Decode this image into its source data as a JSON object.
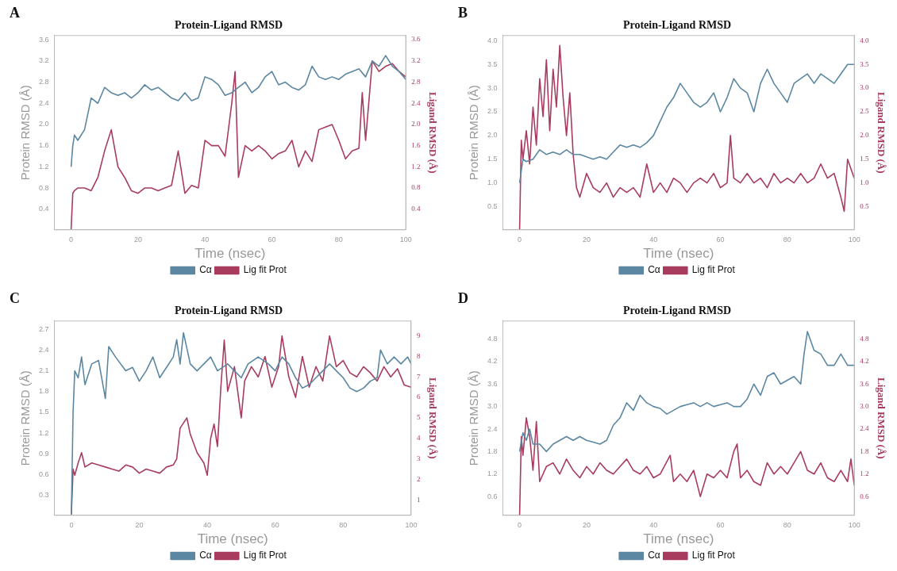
{
  "chart_data": [
    {
      "type": "line",
      "title": "Protein-Ligand RMSD",
      "annotations": [
        "A"
      ],
      "xlabel": "Time (nsec)",
      "ylabel": "Protein RMSD (Å)",
      "y2label": "Ligand RMSD (Å)",
      "xlim": [
        -5,
        100
      ],
      "xticks": [
        0,
        20,
        40,
        60,
        80,
        100
      ],
      "ylim": [
        0.01,
        3.68
      ],
      "yticks": [
        0.4,
        0.8,
        1.2,
        1.6,
        {
          "value": 2,
          "label": "2.0"
        },
        2.4,
        2.8,
        3.2,
        3.6
      ],
      "y2lim": [
        0.01,
        3.68
      ],
      "y2ticks": [
        0.4,
        0.8,
        1.2,
        1.6,
        {
          "value": 2,
          "label": "2.0"
        },
        2.4,
        2.8,
        3.2,
        3.6
      ],
      "grid": false,
      "legend": "bottom",
      "marker": "none",
      "line_style": "solid",
      "series": [
        {
          "name": "Cα",
          "color": "#5b87a2",
          "x": [
            0,
            0.5,
            1,
            2,
            4,
            6,
            8,
            10,
            12,
            14,
            16,
            18,
            20,
            22,
            24,
            26,
            28,
            30,
            32,
            34,
            36,
            38,
            40,
            42,
            44,
            46,
            48,
            50,
            52,
            54,
            56,
            58,
            60,
            62,
            64,
            66,
            68,
            70,
            72,
            74,
            76,
            78,
            80,
            82,
            84,
            86,
            88,
            90,
            92,
            94,
            96,
            98,
            100
          ],
          "values": [
            1.2,
            1.6,
            1.8,
            1.7,
            1.9,
            2.5,
            2.4,
            2.7,
            2.6,
            2.55,
            2.6,
            2.5,
            2.6,
            2.75,
            2.65,
            2.7,
            2.6,
            2.5,
            2.45,
            2.6,
            2.45,
            2.5,
            2.9,
            2.85,
            2.75,
            2.55,
            2.6,
            2.7,
            2.8,
            2.6,
            2.7,
            2.9,
            3.0,
            2.75,
            2.8,
            2.7,
            2.65,
            2.75,
            3.1,
            2.9,
            2.85,
            2.9,
            2.85,
            2.95,
            3.0,
            3.05,
            2.9,
            3.2,
            3.1,
            3.3,
            3.1,
            3.0,
            2.85
          ]
        },
        {
          "name": "Lig fit Prot",
          "color": "#a83c5e",
          "axis": "y2",
          "x": [
            0,
            0.5,
            1,
            2,
            4,
            6,
            8,
            10,
            12,
            14,
            16,
            18,
            20,
            22,
            24,
            26,
            28,
            30,
            32,
            34,
            36,
            38,
            40,
            42,
            44,
            46,
            48,
            49,
            50,
            52,
            54,
            56,
            58,
            60,
            62,
            64,
            66,
            68,
            70,
            72,
            74,
            76,
            78,
            80,
            82,
            84,
            86,
            87,
            88,
            90,
            92,
            94,
            96,
            98,
            100
          ],
          "values": [
            0.02,
            0.7,
            0.75,
            0.8,
            0.8,
            0.75,
            1.0,
            1.5,
            1.9,
            1.2,
            1.0,
            0.75,
            0.7,
            0.8,
            0.8,
            0.75,
            0.8,
            0.85,
            1.5,
            0.7,
            0.85,
            0.8,
            1.7,
            1.6,
            1.6,
            1.4,
            2.4,
            3.0,
            1.0,
            1.6,
            1.5,
            1.6,
            1.5,
            1.35,
            1.45,
            1.5,
            1.7,
            1.2,
            1.5,
            1.3,
            1.9,
            1.95,
            2.0,
            1.7,
            1.35,
            1.5,
            1.55,
            2.6,
            1.7,
            3.2,
            3.0,
            3.1,
            3.15,
            3.0,
            2.9
          ]
        }
      ]
    },
    {
      "type": "line",
      "title": "Protein-Ligand RMSD",
      "annotations": [
        "B"
      ],
      "xlabel": "Time (nsec)",
      "ylabel": "Protein RMSD (Å)",
      "y2label": "Ligand RMSD (Å)",
      "xlim": [
        -5,
        100
      ],
      "xticks": [
        0,
        20,
        40,
        60,
        80,
        100
      ],
      "ylim": [
        0.01,
        4.11
      ],
      "yticks": [
        0.5,
        {
          "value": 1,
          "label": "1.0"
        },
        1.5,
        {
          "value": 2,
          "label": "2.0"
        },
        2.5,
        {
          "value": 3,
          "label": "3.0"
        },
        3.5,
        {
          "value": 4,
          "label": "4.0"
        }
      ],
      "y2lim": [
        0.01,
        4.11
      ],
      "y2ticks": [
        0.5,
        {
          "value": 1,
          "label": "1.0"
        },
        1.5,
        {
          "value": 2,
          "label": "2.0"
        },
        2.5,
        {
          "value": 3,
          "label": "3.0"
        },
        3.5,
        {
          "value": 4,
          "label": "4.0"
        }
      ],
      "grid": false,
      "legend": "bottom",
      "marker": "none",
      "line_style": "solid",
      "series": [
        {
          "name": "Cα",
          "color": "#5b87a2",
          "x": [
            0,
            1,
            2,
            4,
            6,
            8,
            10,
            12,
            14,
            16,
            18,
            20,
            22,
            24,
            26,
            28,
            30,
            32,
            34,
            36,
            38,
            40,
            42,
            44,
            46,
            48,
            50,
            52,
            54,
            56,
            58,
            60,
            62,
            64,
            66,
            68,
            70,
            72,
            74,
            76,
            78,
            80,
            82,
            84,
            86,
            88,
            90,
            92,
            94,
            96,
            98,
            100
          ],
          "values": [
            1.0,
            1.5,
            1.45,
            1.5,
            1.7,
            1.6,
            1.65,
            1.6,
            1.7,
            1.6,
            1.6,
            1.55,
            1.5,
            1.55,
            1.5,
            1.65,
            1.8,
            1.75,
            1.8,
            1.75,
            1.85,
            2.0,
            2.3,
            2.6,
            2.8,
            3.1,
            2.9,
            2.7,
            2.6,
            2.7,
            2.9,
            2.5,
            2.8,
            3.2,
            3.0,
            2.9,
            2.5,
            3.1,
            3.4,
            3.1,
            2.9,
            2.7,
            3.1,
            3.2,
            3.3,
            3.1,
            3.3,
            3.2,
            3.1,
            3.3,
            3.5,
            3.5
          ]
        },
        {
          "name": "Lig fit Prot",
          "color": "#a83c5e",
          "axis": "y2",
          "x": [
            0,
            0.5,
            1,
            2,
            3,
            4,
            5,
            6,
            7,
            8,
            9,
            10,
            11,
            12,
            13,
            14,
            15,
            16,
            17,
            18,
            20,
            22,
            24,
            26,
            28,
            30,
            32,
            34,
            36,
            38,
            40,
            42,
            44,
            46,
            48,
            50,
            52,
            54,
            56,
            58,
            60,
            62,
            63,
            64,
            66,
            68,
            70,
            72,
            74,
            76,
            78,
            80,
            82,
            84,
            86,
            88,
            90,
            92,
            94,
            96,
            97,
            98,
            100
          ],
          "values": [
            0.02,
            1.9,
            1.5,
            2.1,
            1.4,
            2.6,
            1.8,
            3.2,
            2.4,
            3.6,
            2.1,
            3.4,
            2.6,
            3.9,
            2.8,
            2.0,
            2.9,
            1.6,
            0.9,
            0.7,
            1.2,
            0.9,
            0.8,
            1.0,
            0.7,
            0.9,
            0.8,
            0.9,
            0.7,
            1.4,
            0.8,
            1.0,
            0.8,
            1.1,
            1.0,
            0.8,
            1.0,
            1.1,
            1.0,
            1.2,
            0.9,
            1.0,
            2.0,
            1.1,
            1.0,
            1.2,
            1.0,
            1.1,
            0.9,
            1.2,
            1.0,
            1.1,
            1.0,
            1.2,
            1.0,
            1.1,
            1.4,
            1.1,
            1.2,
            0.7,
            0.4,
            1.5,
            1.1
          ]
        }
      ]
    },
    {
      "type": "line",
      "title": "Protein-Ligand RMSD",
      "annotations": [
        "C"
      ],
      "xlabel": "Time (nsec)",
      "ylabel": "Protein RMSD (Å)",
      "y2label": "Ligand RMSD (Å)",
      "xlim": [
        -5,
        100
      ],
      "xticks": [
        0,
        20,
        40,
        60,
        80,
        100
      ],
      "ylim": [
        0.01,
        2.82
      ],
      "yticks": [
        0.3,
        0.6,
        0.9,
        1.2,
        1.5,
        1.8,
        2.1,
        2.4,
        2.7
      ],
      "y2lim": [
        0.24,
        9.73
      ],
      "y2ticks": [
        1,
        2,
        3,
        4,
        5,
        6,
        7,
        8,
        9
      ],
      "grid": false,
      "legend": "bottom",
      "marker": "none",
      "line_style": "solid",
      "series": [
        {
          "name": "Cα",
          "color": "#5b87a2",
          "x": [
            0,
            0.5,
            1,
            2,
            3,
            4,
            6,
            8,
            10,
            11,
            13,
            16,
            18,
            20,
            22,
            24,
            26,
            28,
            30,
            31,
            32,
            33,
            35,
            37,
            39,
            41,
            43,
            46,
            48,
            50,
            52,
            55,
            58,
            60,
            62,
            64,
            66,
            68,
            70,
            72,
            74,
            76,
            78,
            80,
            82,
            84,
            86,
            88,
            90,
            91,
            93,
            95,
            97,
            99,
            100
          ],
          "values": [
            0.02,
            1.5,
            2.1,
            2.0,
            2.3,
            1.9,
            2.2,
            2.25,
            1.7,
            2.45,
            2.3,
            2.1,
            2.15,
            1.95,
            2.1,
            2.3,
            2.0,
            2.15,
            2.3,
            2.55,
            2.2,
            2.65,
            2.2,
            2.1,
            2.2,
            2.3,
            2.1,
            2.2,
            2.1,
            2.0,
            2.2,
            2.3,
            2.2,
            2.1,
            2.3,
            2.2,
            2.0,
            1.85,
            1.9,
            2.0,
            2.1,
            2.2,
            2.1,
            2.0,
            1.85,
            1.8,
            1.85,
            1.95,
            2.0,
            2.4,
            2.2,
            2.3,
            2.2,
            2.3,
            2.2
          ]
        },
        {
          "name": "Lig fit Prot",
          "color": "#a83c5e",
          "axis": "y2",
          "x": [
            0,
            0.5,
            1,
            2,
            3,
            4,
            6,
            8,
            10,
            12,
            14,
            16,
            18,
            20,
            22,
            24,
            26,
            28,
            30,
            31,
            32,
            34,
            35,
            37,
            39,
            40,
            41,
            42,
            43,
            44,
            45,
            46,
            48,
            50,
            51,
            53,
            55,
            57,
            59,
            61,
            62,
            64,
            66,
            68,
            70,
            72,
            74,
            76,
            78,
            80,
            82,
            84,
            86,
            88,
            90,
            92,
            94,
            96,
            98,
            100
          ],
          "values": [
            0.3,
            2.5,
            2.2,
            2.8,
            3.3,
            2.6,
            2.8,
            2.7,
            2.6,
            2.5,
            2.4,
            2.7,
            2.6,
            2.3,
            2.5,
            2.4,
            2.3,
            2.6,
            2.7,
            3.0,
            4.5,
            5.0,
            4.2,
            3.3,
            2.8,
            2.2,
            4.0,
            4.7,
            3.6,
            6.5,
            8.8,
            6.3,
            7.5,
            5.0,
            6.8,
            7.5,
            7.0,
            8.0,
            6.5,
            7.5,
            9.0,
            7.0,
            6.0,
            8.0,
            6.5,
            7.5,
            6.8,
            9.0,
            7.5,
            7.8,
            7.2,
            7.0,
            7.5,
            7.2,
            6.8,
            7.5,
            7.0,
            7.4,
            6.6,
            6.5
          ]
        }
      ]
    },
    {
      "type": "line",
      "title": "Protein-Ligand RMSD",
      "annotations": [
        "D"
      ],
      "xlabel": "Time (nsec)",
      "ylabel": "Protein RMSD (Å)",
      "y2label": "Ligand RMSD (Å)",
      "xlim": [
        -5,
        100
      ],
      "xticks": [
        0,
        20,
        40,
        60,
        80,
        100
      ],
      "ylim": [
        0.1,
        5.28
      ],
      "yticks": [
        0.6,
        1.2,
        1.8,
        2.4,
        {
          "value": 3,
          "label": "3.0"
        },
        3.6,
        4.2,
        4.8
      ],
      "y2lim": [
        0.1,
        5.28
      ],
      "y2ticks": [
        0.6,
        1.2,
        1.8,
        2.4,
        {
          "value": 3,
          "label": "3.0"
        },
        3.6,
        4.2,
        4.8
      ],
      "grid": false,
      "legend": "bottom",
      "marker": "none",
      "line_style": "solid",
      "series": [
        {
          "name": "Cα",
          "color": "#5b87a2",
          "x": [
            0,
            1,
            2,
            3,
            4,
            6,
            8,
            10,
            12,
            14,
            16,
            18,
            20,
            22,
            24,
            26,
            28,
            30,
            32,
            34,
            36,
            38,
            40,
            42,
            44,
            46,
            48,
            50,
            52,
            54,
            56,
            58,
            60,
            62,
            64,
            66,
            68,
            70,
            72,
            74,
            76,
            78,
            80,
            82,
            84,
            85,
            86,
            88,
            90,
            92,
            94,
            96,
            98,
            100
          ],
          "values": [
            1.8,
            2.3,
            2.1,
            2.4,
            2.0,
            2.0,
            1.8,
            2.0,
            2.1,
            2.2,
            2.1,
            2.2,
            2.1,
            2.05,
            2.0,
            2.1,
            2.5,
            2.7,
            3.1,
            2.9,
            3.3,
            3.1,
            3.0,
            2.95,
            2.8,
            2.9,
            3.0,
            3.05,
            3.1,
            3.0,
            3.1,
            3.0,
            3.05,
            3.1,
            3.0,
            3.0,
            3.2,
            3.6,
            3.3,
            3.8,
            3.9,
            3.6,
            3.7,
            3.8,
            3.6,
            4.4,
            5.0,
            4.5,
            4.4,
            4.1,
            4.1,
            4.4,
            4.1,
            4.1
          ]
        },
        {
          "name": "Lig fit Prot",
          "color": "#a83c5e",
          "axis": "y2",
          "x": [
            0,
            0.5,
            1,
            2,
            3,
            4,
            5,
            6,
            8,
            10,
            12,
            14,
            16,
            18,
            20,
            22,
            24,
            26,
            28,
            30,
            32,
            34,
            36,
            38,
            40,
            42,
            45,
            46,
            48,
            50,
            52,
            54,
            56,
            58,
            60,
            62,
            64,
            65,
            66,
            68,
            70,
            72,
            74,
            76,
            78,
            80,
            82,
            84,
            86,
            88,
            90,
            92,
            94,
            96,
            98,
            99,
            100
          ],
          "values": [
            0.1,
            2.2,
            1.7,
            2.7,
            2.2,
            1.3,
            2.6,
            1.0,
            1.4,
            1.5,
            1.2,
            1.6,
            1.3,
            1.1,
            1.4,
            1.2,
            1.5,
            1.3,
            1.2,
            1.4,
            1.6,
            1.3,
            1.2,
            1.4,
            1.1,
            1.2,
            1.7,
            1.0,
            1.2,
            1.0,
            1.3,
            0.6,
            1.2,
            1.1,
            1.3,
            1.1,
            1.8,
            2.0,
            1.1,
            1.3,
            1.0,
            0.9,
            1.5,
            1.2,
            1.4,
            1.2,
            1.5,
            1.8,
            1.3,
            1.2,
            1.5,
            1.1,
            1.0,
            1.3,
            1.0,
            1.6,
            0.9
          ]
        }
      ]
    }
  ]
}
